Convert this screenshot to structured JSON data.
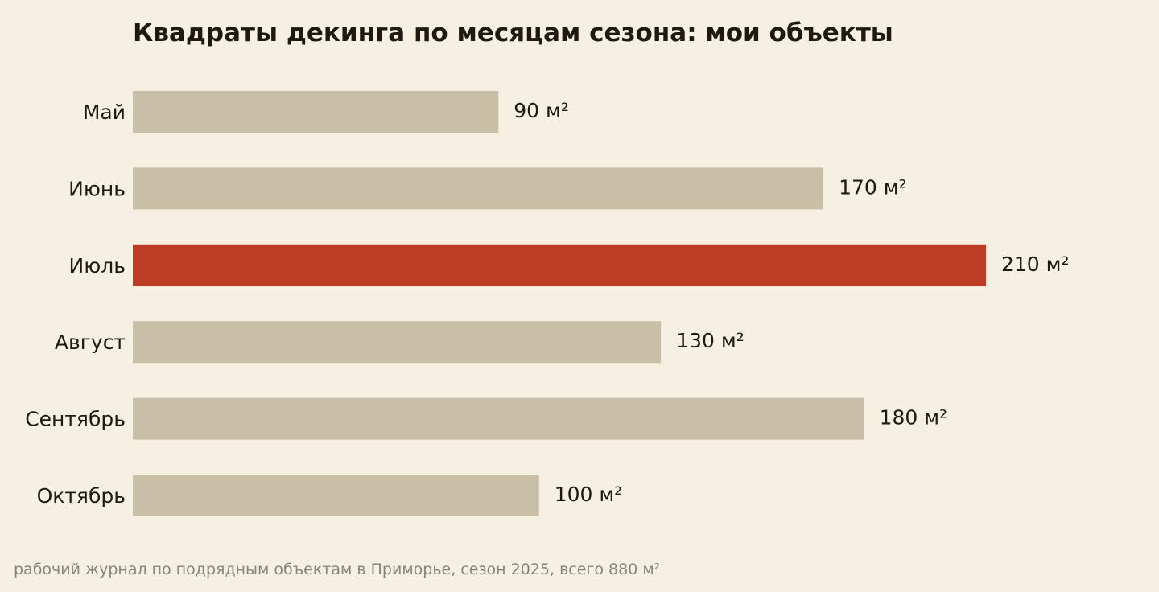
{
  "chart_data": {
    "type": "bar",
    "orientation": "horizontal",
    "title": "Квадраты декинга по месяцам сезона: мои объекты",
    "caption": "рабочий журнал по подрядным объектам в Приморье, сезон 2025, всего 880 м²",
    "categories": [
      "Май",
      "Июнь",
      "Июль",
      "Август",
      "Сентябрь",
      "Октябрь"
    ],
    "values": [
      90,
      170,
      210,
      130,
      180,
      100
    ],
    "value_labels": [
      "90 м²",
      "170 м²",
      "210 м²",
      "130 м²",
      "180 м²",
      "100 м²"
    ],
    "unit": "м²",
    "highlight_index": 2,
    "xlim": [
      0,
      210
    ],
    "grid": false,
    "legend": "none",
    "colors": {
      "bar": "#c9bfa7",
      "highlight": "#bc3c26",
      "background": "#f6f0e3",
      "text": "#1e1a12",
      "caption": "#8a847a"
    }
  }
}
